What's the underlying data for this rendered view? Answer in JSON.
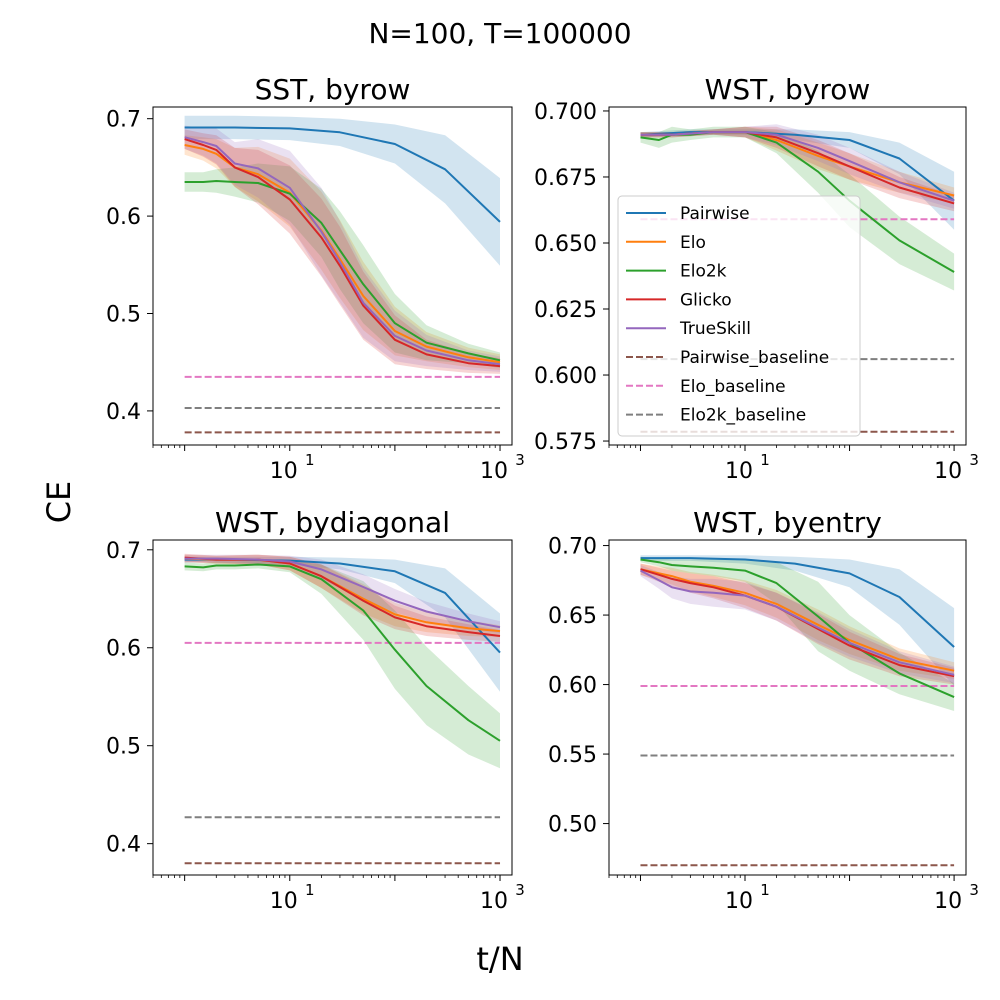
{
  "suptitle": "N=100, T=100000",
  "xlabel": "t/N",
  "ylabel": "CE",
  "colors": {
    "Pairwise": "#1f77b4",
    "Elo": "#ff7f0e",
    "Elo2k": "#2ca02c",
    "Glicko": "#d62728",
    "TrueSkill": "#9467bd",
    "Pairwise_baseline": "#8c564b",
    "Elo_baseline": "#e377c2",
    "Elo2k_baseline": "#7f7f7f"
  },
  "legend": {
    "placement": "top-right panel, left-center",
    "entries": [
      "Pairwise",
      "Elo",
      "Elo2k",
      "Glicko",
      "TrueSkill",
      "Pairwise_baseline",
      "Elo_baseline",
      "Elo2k_baseline"
    ]
  },
  "chart_data": [
    {
      "type": "line",
      "title": "SST, byrow",
      "xscale": "log",
      "xlim": [
        0.5,
        1300
      ],
      "ylim": [
        0.365,
        0.712
      ],
      "xticks": [
        {
          "value": 10,
          "label": "10^1"
        },
        {
          "value": 1000,
          "label": "10^3"
        }
      ],
      "yticks": [
        {
          "value": 0.4,
          "label": "0.4"
        },
        {
          "value": 0.5,
          "label": "0.5"
        },
        {
          "value": 0.6,
          "label": "0.6"
        },
        {
          "value": 0.7,
          "label": "0.7"
        }
      ],
      "series": [
        {
          "name": "Pairwise",
          "x": [
            1,
            3,
            10,
            30,
            100,
            300,
            1000
          ],
          "y": [
            0.691,
            0.691,
            0.69,
            0.686,
            0.674,
            0.648,
            0.594
          ],
          "band": [
            0.012,
            0.012,
            0.012,
            0.014,
            0.02,
            0.035,
            0.045
          ]
        },
        {
          "name": "Elo",
          "x": [
            1,
            1.5,
            2,
            3,
            5,
            10,
            20,
            30,
            50,
            100,
            200,
            500,
            1000
          ],
          "y": [
            0.673,
            0.669,
            0.664,
            0.65,
            0.643,
            0.624,
            0.585,
            0.556,
            0.518,
            0.482,
            0.466,
            0.455,
            0.45
          ],
          "band": [
            0.01,
            0.012,
            0.015,
            0.02,
            0.028,
            0.035,
            0.04,
            0.04,
            0.035,
            0.025,
            0.015,
            0.01,
            0.008
          ]
        },
        {
          "name": "Elo2k",
          "x": [
            1,
            1.5,
            2,
            3,
            5,
            10,
            20,
            30,
            50,
            100,
            200,
            500,
            1000
          ],
          "y": [
            0.635,
            0.635,
            0.636,
            0.635,
            0.634,
            0.623,
            0.593,
            0.565,
            0.53,
            0.49,
            0.47,
            0.459,
            0.452
          ],
          "band": [
            0.01,
            0.01,
            0.012,
            0.015,
            0.02,
            0.028,
            0.035,
            0.04,
            0.04,
            0.03,
            0.018,
            0.01,
            0.008
          ]
        },
        {
          "name": "Glicko",
          "x": [
            1,
            1.5,
            2,
            3,
            5,
            10,
            20,
            30,
            50,
            100,
            200,
            500,
            1000
          ],
          "y": [
            0.679,
            0.673,
            0.668,
            0.65,
            0.64,
            0.617,
            0.578,
            0.549,
            0.508,
            0.473,
            0.458,
            0.449,
            0.446
          ],
          "band": [
            0.01,
            0.012,
            0.015,
            0.02,
            0.028,
            0.035,
            0.04,
            0.04,
            0.035,
            0.025,
            0.015,
            0.01,
            0.008
          ]
        },
        {
          "name": "TrueSkill",
          "x": [
            1,
            1.5,
            2,
            3,
            5,
            10,
            20,
            30,
            50,
            100,
            200,
            500,
            1000
          ],
          "y": [
            0.681,
            0.676,
            0.672,
            0.654,
            0.649,
            0.629,
            0.584,
            0.553,
            0.511,
            0.477,
            0.462,
            0.452,
            0.448
          ],
          "band": [
            0.012,
            0.014,
            0.018,
            0.022,
            0.03,
            0.038,
            0.045,
            0.042,
            0.036,
            0.026,
            0.016,
            0.01,
            0.008
          ]
        },
        {
          "name": "Pairwise_baseline",
          "baseline": 0.378
        },
        {
          "name": "Elo_baseline",
          "baseline": 0.435
        },
        {
          "name": "Elo2k_baseline",
          "baseline": 0.403
        }
      ]
    },
    {
      "type": "line",
      "title": "WST, byrow",
      "xscale": "log",
      "xlim": [
        0.5,
        1300
      ],
      "ylim": [
        0.5735,
        0.7015
      ],
      "xticks": [
        {
          "value": 10,
          "label": "10^1"
        },
        {
          "value": 1000,
          "label": "10^3"
        }
      ],
      "yticks": [
        {
          "value": 0.575,
          "label": "0.575"
        },
        {
          "value": 0.6,
          "label": "0.600"
        },
        {
          "value": 0.625,
          "label": "0.625"
        },
        {
          "value": 0.65,
          "label": "0.650"
        },
        {
          "value": 0.675,
          "label": "0.675"
        },
        {
          "value": 0.7,
          "label": "0.700"
        }
      ],
      "series": [
        {
          "name": "Pairwise",
          "x": [
            1,
            3,
            10,
            30,
            100,
            300,
            1000
          ],
          "y": [
            0.691,
            0.692,
            0.692,
            0.691,
            0.689,
            0.682,
            0.666
          ],
          "band": [
            0.001,
            0.001,
            0.001,
            0.002,
            0.003,
            0.006,
            0.011
          ]
        },
        {
          "name": "Elo",
          "x": [
            1,
            2,
            5,
            10,
            20,
            50,
            100,
            300,
            1000
          ],
          "y": [
            0.691,
            0.691,
            0.692,
            0.692,
            0.689,
            0.683,
            0.679,
            0.673,
            0.668
          ],
          "band": [
            0.001,
            0.001,
            0.001,
            0.002,
            0.004,
            0.005,
            0.005,
            0.004,
            0.003
          ]
        },
        {
          "name": "Elo2k",
          "x": [
            1,
            1.5,
            2,
            3,
            5,
            10,
            20,
            50,
            100,
            300,
            1000
          ],
          "y": [
            0.69,
            0.689,
            0.691,
            0.691,
            0.692,
            0.692,
            0.688,
            0.677,
            0.666,
            0.651,
            0.639
          ],
          "band": [
            0.002,
            0.003,
            0.003,
            0.002,
            0.002,
            0.002,
            0.004,
            0.008,
            0.01,
            0.009,
            0.007
          ]
        },
        {
          "name": "Glicko",
          "x": [
            1,
            2,
            5,
            10,
            20,
            50,
            100,
            300,
            1000
          ],
          "y": [
            0.691,
            0.691,
            0.692,
            0.692,
            0.69,
            0.684,
            0.679,
            0.671,
            0.665
          ],
          "band": [
            0.001,
            0.001,
            0.001,
            0.002,
            0.004,
            0.005,
            0.005,
            0.004,
            0.003
          ]
        },
        {
          "name": "TrueSkill",
          "x": [
            1,
            2,
            5,
            10,
            20,
            50,
            100,
            300,
            1000
          ],
          "y": [
            0.691,
            0.691,
            0.692,
            0.692,
            0.691,
            0.686,
            0.681,
            0.673,
            0.666
          ],
          "band": [
            0.001,
            0.001,
            0.001,
            0.002,
            0.004,
            0.005,
            0.005,
            0.004,
            0.003
          ]
        },
        {
          "name": "Pairwise_baseline",
          "baseline": 0.5785
        },
        {
          "name": "Elo_baseline",
          "baseline": 0.659
        },
        {
          "name": "Elo2k_baseline",
          "baseline": 0.606
        }
      ]
    },
    {
      "type": "line",
      "title": "WST, bydiagonal",
      "xscale": "log",
      "xlim": [
        0.5,
        1300
      ],
      "ylim": [
        0.368,
        0.71
      ],
      "xticks": [
        {
          "value": 10,
          "label": "10^1"
        },
        {
          "value": 1000,
          "label": "10^3"
        }
      ],
      "yticks": [
        {
          "value": 0.4,
          "label": "0.4"
        },
        {
          "value": 0.5,
          "label": "0.5"
        },
        {
          "value": 0.6,
          "label": "0.6"
        },
        {
          "value": 0.7,
          "label": "0.7"
        }
      ],
      "series": [
        {
          "name": "Pairwise",
          "x": [
            1,
            3,
            10,
            30,
            100,
            300,
            1000
          ],
          "y": [
            0.69,
            0.69,
            0.689,
            0.686,
            0.678,
            0.656,
            0.595
          ],
          "band": [
            0.003,
            0.003,
            0.004,
            0.006,
            0.012,
            0.025,
            0.04
          ]
        },
        {
          "name": "Elo",
          "x": [
            1,
            2,
            5,
            10,
            20,
            50,
            100,
            200,
            500,
            1000
          ],
          "y": [
            0.691,
            0.69,
            0.69,
            0.686,
            0.673,
            0.65,
            0.634,
            0.626,
            0.62,
            0.617
          ],
          "band": [
            0.004,
            0.004,
            0.005,
            0.007,
            0.012,
            0.015,
            0.012,
            0.01,
            0.008,
            0.006
          ]
        },
        {
          "name": "Elo2k",
          "x": [
            1,
            1.5,
            2,
            3,
            5,
            10,
            20,
            50,
            100,
            200,
            500,
            1000
          ],
          "y": [
            0.683,
            0.682,
            0.684,
            0.684,
            0.685,
            0.683,
            0.67,
            0.638,
            0.598,
            0.561,
            0.526,
            0.505
          ],
          "band": [
            0.004,
            0.004,
            0.004,
            0.004,
            0.004,
            0.006,
            0.015,
            0.03,
            0.04,
            0.04,
            0.035,
            0.028
          ]
        },
        {
          "name": "Glicko",
          "x": [
            1,
            2,
            5,
            10,
            20,
            50,
            100,
            200,
            500,
            1000
          ],
          "y": [
            0.692,
            0.69,
            0.69,
            0.686,
            0.673,
            0.648,
            0.631,
            0.622,
            0.616,
            0.612
          ],
          "band": [
            0.004,
            0.004,
            0.005,
            0.007,
            0.012,
            0.015,
            0.012,
            0.01,
            0.008,
            0.006
          ]
        },
        {
          "name": "TrueSkill",
          "x": [
            1,
            2,
            5,
            10,
            20,
            50,
            100,
            200,
            500,
            1000
          ],
          "y": [
            0.691,
            0.691,
            0.69,
            0.688,
            0.68,
            0.662,
            0.648,
            0.637,
            0.627,
            0.621
          ],
          "band": [
            0.004,
            0.004,
            0.005,
            0.006,
            0.01,
            0.013,
            0.012,
            0.01,
            0.008,
            0.006
          ]
        },
        {
          "name": "Pairwise_baseline",
          "baseline": 0.38
        },
        {
          "name": "Elo_baseline",
          "baseline": 0.605
        },
        {
          "name": "Elo2k_baseline",
          "baseline": 0.427
        }
      ]
    },
    {
      "type": "line",
      "title": "WST, byentry",
      "xscale": "log",
      "xlim": [
        0.5,
        1300
      ],
      "ylim": [
        0.463,
        0.704
      ],
      "xticks": [
        {
          "value": 10,
          "label": "10^1"
        },
        {
          "value": 1000,
          "label": "10^3"
        }
      ],
      "yticks": [
        {
          "value": 0.5,
          "label": "0.50"
        },
        {
          "value": 0.55,
          "label": "0.55"
        },
        {
          "value": 0.6,
          "label": "0.60"
        },
        {
          "value": 0.65,
          "label": "0.65"
        },
        {
          "value": 0.7,
          "label": "0.70"
        }
      ],
      "series": [
        {
          "name": "Pairwise",
          "x": [
            1,
            3,
            10,
            30,
            100,
            300,
            1000
          ],
          "y": [
            0.691,
            0.691,
            0.69,
            0.687,
            0.68,
            0.663,
            0.627
          ],
          "band": [
            0.002,
            0.002,
            0.003,
            0.005,
            0.01,
            0.02,
            0.028
          ]
        },
        {
          "name": "Elo",
          "x": [
            1,
            1.5,
            2,
            3,
            5,
            10,
            20,
            50,
            100,
            300,
            1000
          ],
          "y": [
            0.683,
            0.68,
            0.678,
            0.674,
            0.671,
            0.666,
            0.658,
            0.643,
            0.632,
            0.618,
            0.61
          ],
          "band": [
            0.004,
            0.005,
            0.006,
            0.007,
            0.008,
            0.009,
            0.01,
            0.011,
            0.01,
            0.008,
            0.006
          ]
        },
        {
          "name": "Elo2k",
          "x": [
            1,
            1.5,
            2,
            3,
            5,
            10,
            20,
            50,
            100,
            300,
            1000
          ],
          "y": [
            0.69,
            0.688,
            0.686,
            0.685,
            0.684,
            0.682,
            0.673,
            0.649,
            0.63,
            0.608,
            0.591
          ],
          "band": [
            0.002,
            0.003,
            0.004,
            0.005,
            0.006,
            0.008,
            0.015,
            0.025,
            0.02,
            0.015,
            0.01
          ]
        },
        {
          "name": "Glicko",
          "x": [
            1,
            1.5,
            2,
            3,
            5,
            10,
            20,
            50,
            100,
            300,
            1000
          ],
          "y": [
            0.683,
            0.679,
            0.676,
            0.673,
            0.67,
            0.664,
            0.656,
            0.64,
            0.628,
            0.614,
            0.606
          ],
          "band": [
            0.004,
            0.005,
            0.006,
            0.007,
            0.008,
            0.009,
            0.01,
            0.011,
            0.01,
            0.008,
            0.006
          ]
        },
        {
          "name": "TrueSkill",
          "x": [
            1,
            1.5,
            2,
            3,
            5,
            10,
            20,
            50,
            100,
            300,
            1000
          ],
          "y": [
            0.682,
            0.675,
            0.67,
            0.667,
            0.666,
            0.664,
            0.656,
            0.641,
            0.63,
            0.616,
            0.607
          ],
          "band": [
            0.004,
            0.006,
            0.008,
            0.009,
            0.01,
            0.01,
            0.01,
            0.011,
            0.01,
            0.008,
            0.006
          ]
        },
        {
          "name": "Pairwise_baseline",
          "baseline": 0.47
        },
        {
          "name": "Elo_baseline",
          "baseline": 0.599
        },
        {
          "name": "Elo2k_baseline",
          "baseline": 0.549
        }
      ]
    }
  ]
}
